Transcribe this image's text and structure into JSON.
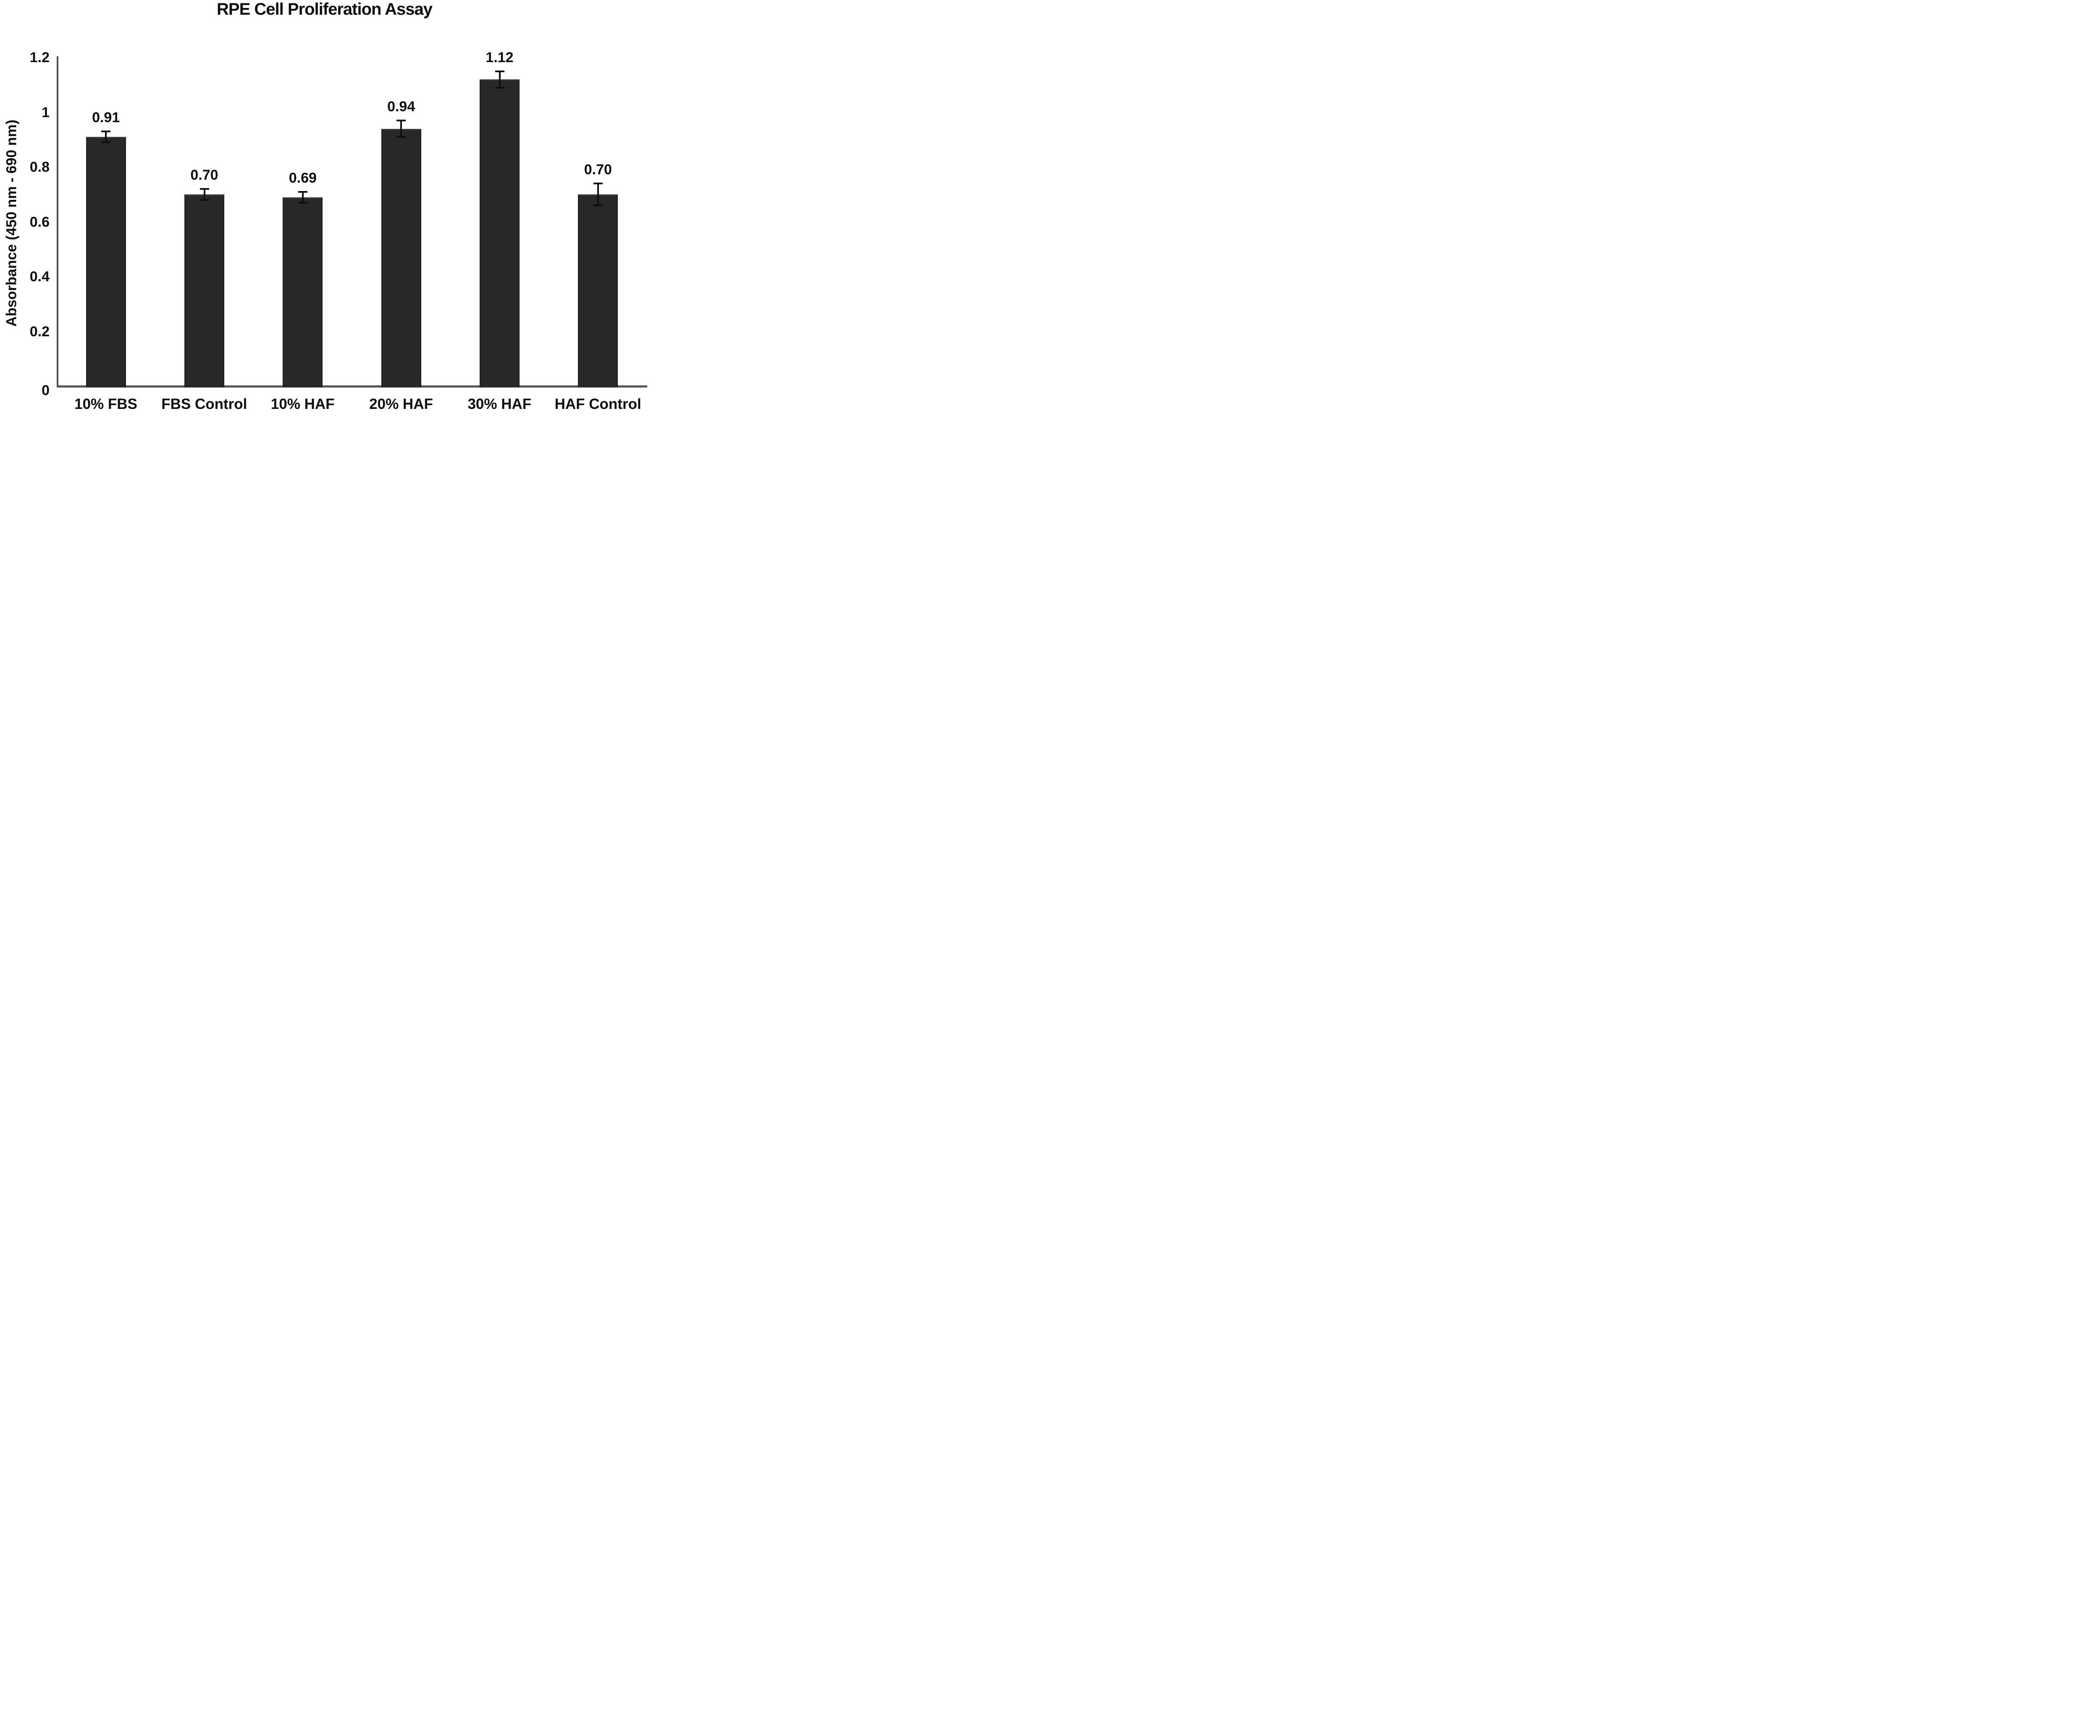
{
  "chart_data": {
    "type": "bar",
    "title": "RPE Cell Proliferation Assay",
    "ylabel": "Absorbance (450 nm - 690 nm)",
    "xlabel": "",
    "categories": [
      "10% FBS",
      "FBS Control",
      "10% HAF",
      "20% HAF",
      "30% HAF",
      "HAF Control"
    ],
    "values": [
      0.91,
      0.7,
      0.69,
      0.94,
      1.12,
      0.7
    ],
    "value_labels": [
      "0.91",
      "0.70",
      "0.69",
      "0.94",
      "1.12",
      "0.70"
    ],
    "error_bars": [
      0.02,
      0.02,
      0.02,
      0.03,
      0.03,
      0.04
    ],
    "ylim": [
      0,
      1.2
    ],
    "ytick_labels": [
      "0",
      "0.2",
      "0.4",
      "0.6",
      "0.8",
      "1",
      "1.2"
    ],
    "grid": false,
    "legend": null,
    "colors": {
      "bar": "#282828",
      "axis": "#4f4f4f",
      "text": "#0f0f0f",
      "error_bar": "#0d0d0d",
      "background": "#ffffff"
    }
  }
}
